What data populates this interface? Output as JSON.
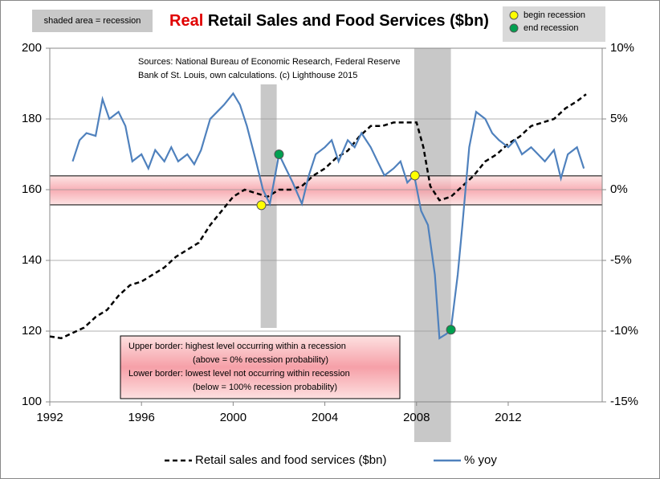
{
  "chart_data": {
    "type": "line",
    "title_highlight": "Real",
    "title": "Retail Sales and Food Services ($bn)",
    "shaded_label": "shaded area = recession",
    "source_note": [
      "Sources: National Bureau of Economic Research, Federal Reserve",
      "Bank of St. Louis, own calculations. (c) Lighthouse 2015"
    ],
    "band_note": [
      "Upper border: highest level occurring within a recession",
      "(above = 0% recession probability)",
      "Lower border: lowest level not occurring within recession",
      "(below = 100% recession probability)"
    ],
    "xlim": [
      1992,
      2016.1
    ],
    "xticks": [
      1992,
      1996,
      2000,
      2004,
      2008,
      2012
    ],
    "ylim": [
      100,
      200
    ],
    "yticks": [
      100,
      120,
      140,
      160,
      180,
      200
    ],
    "y2lim": [
      -15,
      10
    ],
    "y2ticks": [
      {
        "value": -15,
        "label": "-15%"
      },
      {
        "value": -10,
        "label": "-10%"
      },
      {
        "value": -5,
        "label": "-5%"
      },
      {
        "value": 0,
        "label": "0%"
      },
      {
        "value": 5,
        "label": "5%"
      },
      {
        "value": 10,
        "label": "10%"
      }
    ],
    "grid": true,
    "band": [
      155.7,
      163.9
    ],
    "recessions": [
      [
        2001.2,
        2001.9
      ],
      [
        2007.9,
        2009.5
      ]
    ],
    "series": [
      {
        "name": "Retail sales and food services ($bn)",
        "color": "#000000",
        "dashed": true,
        "axis": "y",
        "x": [
          1992,
          1992.5,
          1993,
          1993.5,
          1994,
          1994.5,
          1995,
          1995.5,
          1996,
          1996.5,
          1997,
          1997.5,
          1998,
          1998.5,
          1999,
          1999.5,
          2000,
          2000.5,
          2001,
          2001.5,
          2002,
          2002.5,
          2003,
          2003.5,
          2004,
          2004.5,
          2005,
          2005.5,
          2006,
          2006.5,
          2007,
          2007.5,
          2008,
          2008.3,
          2008.6,
          2009,
          2009.5,
          2010,
          2010.5,
          2011,
          2011.5,
          2012,
          2012.5,
          2013,
          2013.5,
          2014,
          2014.5,
          2015,
          2015.4
        ],
        "values": [
          118.5,
          118,
          119.5,
          121,
          124,
          126,
          130,
          133,
          134,
          136,
          138,
          141,
          143,
          145,
          150,
          154,
          158,
          160,
          159,
          158,
          160,
          160,
          161,
          164,
          166,
          169,
          171,
          175,
          178,
          178,
          179,
          179,
          179,
          172,
          161,
          157,
          158,
          161,
          164,
          168,
          170,
          173,
          175,
          178,
          179,
          180,
          183,
          185,
          187
        ]
      },
      {
        "name": "% yoy",
        "color": "#4f81bd",
        "dashed": false,
        "axis": "y2",
        "x": [
          1993,
          1993.3,
          1993.6,
          1994,
          1994.3,
          1994.6,
          1995,
          1995.3,
          1995.6,
          1996,
          1996.3,
          1996.6,
          1997,
          1997.3,
          1997.6,
          1998,
          1998.3,
          1998.6,
          1999,
          1999.3,
          1999.6,
          2000,
          2000.3,
          2000.6,
          2001,
          2001.3,
          2001.6,
          2002,
          2002.3,
          2002.6,
          2003,
          2003.3,
          2003.6,
          2004,
          2004.3,
          2004.6,
          2005,
          2005.3,
          2005.6,
          2006,
          2006.3,
          2006.6,
          2007,
          2007.3,
          2007.6,
          2007.9,
          2008.2,
          2008.5,
          2008.8,
          2009,
          2009.3,
          2009.5,
          2009.8,
          2010,
          2010.3,
          2010.6,
          2011,
          2011.3,
          2011.6,
          2012,
          2012.3,
          2012.6,
          2013,
          2013.3,
          2013.6,
          2014,
          2014.3,
          2014.6,
          2015,
          2015.3
        ],
        "values": [
          2.0,
          3.5,
          4.0,
          3.8,
          6.4,
          5.0,
          5.5,
          4.5,
          2.0,
          2.5,
          1.5,
          2.8,
          2.0,
          3.0,
          2.0,
          2.5,
          1.8,
          2.8,
          5.0,
          5.5,
          6.0,
          6.8,
          6.0,
          4.5,
          2.0,
          0,
          -1.0,
          2.5,
          1.5,
          0.5,
          -1.0,
          1.0,
          2.5,
          3.0,
          3.5,
          2.0,
          3.5,
          3.0,
          4.0,
          3.0,
          2.0,
          1.0,
          1.5,
          2.0,
          0.5,
          1.0,
          -1.5,
          -2.5,
          -6.0,
          -10.5,
          -10.2,
          -9.9,
          -6.0,
          -2.5,
          3.0,
          5.5,
          5.0,
          4.0,
          3.5,
          3.0,
          3.5,
          2.5,
          3.0,
          2.5,
          2.0,
          2.8,
          0.8,
          2.5,
          3.0,
          1.5
        ]
      }
    ],
    "markers": [
      {
        "name": "begin recession",
        "color": "#ffff00",
        "axis": "y2",
        "x": [
          2001.23,
          2007.93
        ],
        "values": [
          -1.1,
          1.0
        ]
      },
      {
        "name": "end recession",
        "color": "#00a050",
        "axis": "y2",
        "x": [
          2002.0,
          2009.5
        ],
        "values": [
          2.5,
          -9.9
        ]
      }
    ]
  }
}
